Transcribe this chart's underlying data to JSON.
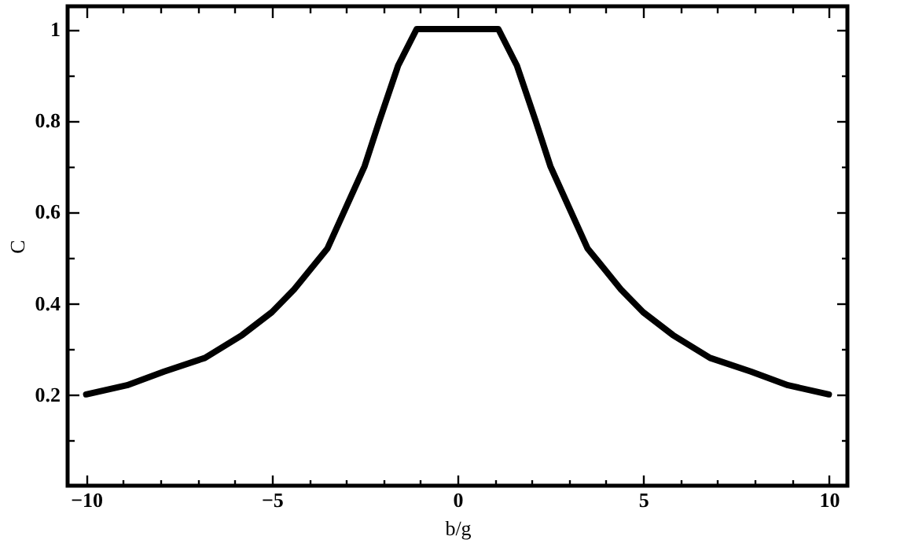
{
  "chart_data": {
    "type": "line",
    "xlabel": "b/g",
    "ylabel": "C",
    "x": [
      -10,
      -8.9,
      -7.9,
      -6.8,
      -5.8,
      -5,
      -4.4,
      -3.5,
      -3,
      -2.5,
      -2.1,
      -1.6,
      -1.1,
      0,
      1.1,
      1.6,
      2.1,
      2.5,
      3,
      3.5,
      4.4,
      5,
      5.8,
      6.8,
      7.9,
      8.9,
      10
    ],
    "series": [
      {
        "color": "#000000",
        "values": [
          0.2,
          0.22,
          0.25,
          0.28,
          0.33,
          0.38,
          0.43,
          0.52,
          0.61,
          0.7,
          0.8,
          0.92,
          1,
          1,
          1,
          0.92,
          0.8,
          0.7,
          0.61,
          0.52,
          0.43,
          0.38,
          0.33,
          0.28,
          0.25,
          0.22,
          0.2
        ]
      }
    ],
    "xlim": [
      -10.5,
      10.5
    ],
    "ylim": [
      0,
      1.05
    ],
    "xticks": [
      -10,
      {
        "value": -9,
        "label": null
      },
      {
        "value": -8,
        "label": null
      },
      {
        "value": -7,
        "label": null
      },
      {
        "value": -6,
        "label": null
      },
      -5,
      {
        "value": -4,
        "label": null
      },
      {
        "value": -3,
        "label": null
      },
      {
        "value": -2,
        "label": null
      },
      {
        "value": -1,
        "label": null
      },
      0,
      {
        "value": 1,
        "label": null
      },
      {
        "value": 2,
        "label": null
      },
      {
        "value": 3,
        "label": null
      },
      {
        "value": 4,
        "label": null
      },
      5,
      {
        "value": 6,
        "label": null
      },
      {
        "value": 7,
        "label": null
      },
      {
        "value": 8,
        "label": null
      },
      {
        "value": 9,
        "label": null
      },
      10
    ],
    "yticks": [
      {
        "value": 0.1,
        "label": null
      },
      0.2,
      {
        "value": 0.3,
        "label": null
      },
      0.4,
      {
        "value": 0.5,
        "label": null
      },
      0.6,
      {
        "value": 0.7,
        "label": null
      },
      0.8,
      {
        "value": 0.9,
        "label": null
      },
      1
    ],
    "grid": false,
    "marker": "none",
    "line_style": "solid"
  }
}
